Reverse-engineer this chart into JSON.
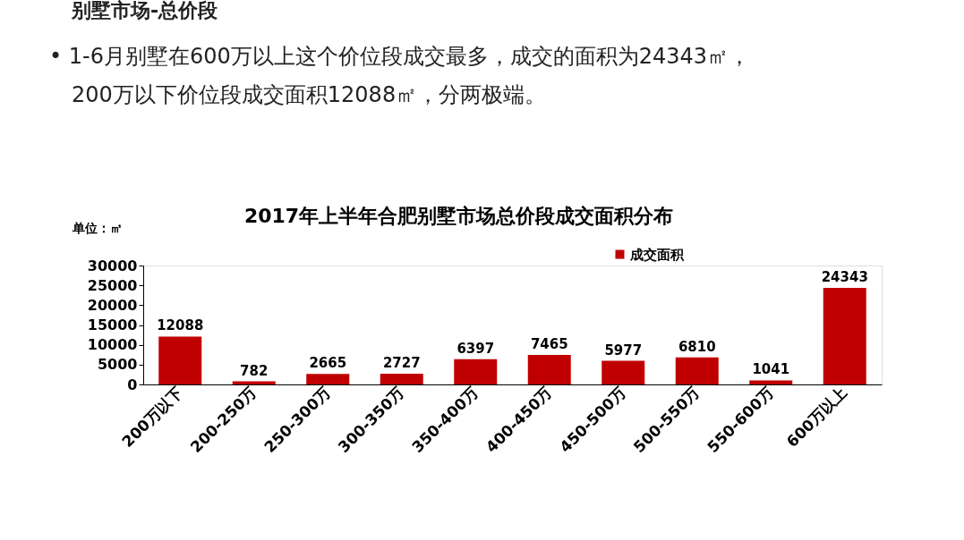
{
  "chart_data": {
    "type": "bar",
    "title": "2017年上半年合肥别墅市场总价段成交面积分布",
    "ylabel": "单位：㎡",
    "annotations": [
      "别墅市场-总价段",
      "• 1-6月别墅在600万以上这个价位段成交最多，成交的面积为24343㎡，",
      "200万以下价位段成交面积12088㎡，分两极端。"
    ],
    "categories": [
      "200万以下",
      "200-250万",
      "250-300万",
      "300-350万",
      "350-400万",
      "400-450万",
      "450-500万",
      "500-550万",
      "550-600万",
      "600万以上"
    ],
    "series": [
      {
        "name": "成交面积",
        "color": "#c00000",
        "values": [
          12088,
          782,
          2665,
          2727,
          6397,
          7465,
          5977,
          6810,
          1041,
          24343
        ]
      }
    ],
    "ylim": [
      0,
      30000
    ],
    "yticks": [
      0,
      5000,
      10000,
      15000,
      20000,
      25000,
      30000
    ],
    "data_labels": true,
    "legend": "top right",
    "grid": false
  }
}
